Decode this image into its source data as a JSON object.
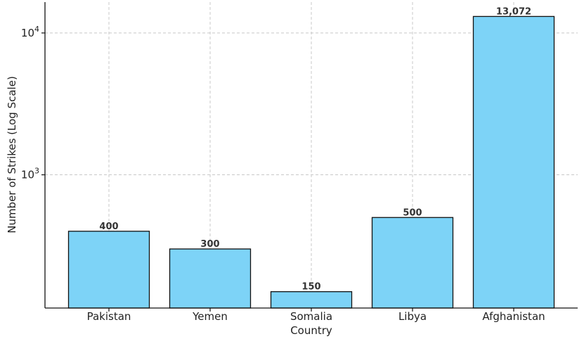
{
  "chart_data": {
    "type": "bar",
    "categories": [
      "Pakistan",
      "Yemen",
      "Somalia",
      "Libya",
      "Afghanistan"
    ],
    "values": [
      400,
      300,
      150,
      500,
      13072
    ],
    "data_labels": [
      "400",
      "300",
      "150",
      "500",
      "13,072"
    ],
    "title": "",
    "xlabel": "Country",
    "ylabel": "Number of Strikes (Log Scale)",
    "yscale": "log",
    "ylim": [
      115,
      16500
    ],
    "yticks": [
      {
        "value": 1000,
        "base": "10",
        "exp": "3"
      },
      {
        "value": 10000,
        "base": "10",
        "exp": "4"
      }
    ],
    "grid": true,
    "legend": "none",
    "bar_color": "#7dd3f7",
    "edge_color": "#111111"
  }
}
